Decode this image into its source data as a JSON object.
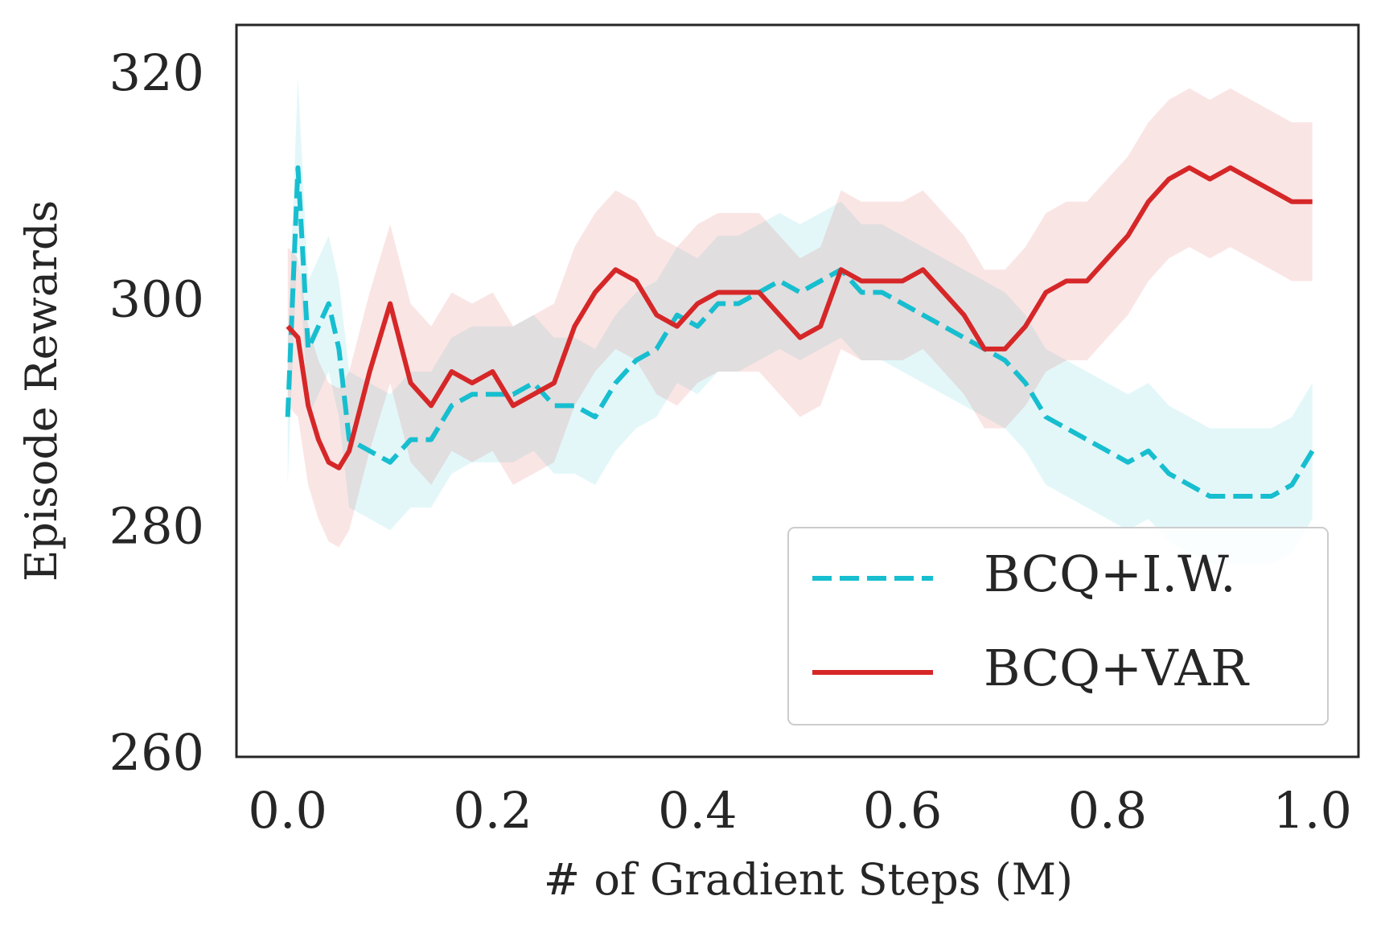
{
  "chart_data": {
    "type": "line",
    "xlabel": "# of Gradient Steps (M)",
    "ylabel": "Episode Rewards",
    "x": [
      0,
      0.01,
      0.02,
      0.03,
      0.04,
      0.05,
      0.06,
      0.08,
      0.1,
      0.12,
      0.14,
      0.16,
      0.18,
      0.2,
      0.22,
      0.24,
      0.26,
      0.28,
      0.3,
      0.32,
      0.34,
      0.36,
      0.38,
      0.4,
      0.42,
      0.44,
      0.46,
      0.48,
      0.5,
      0.52,
      0.54,
      0.56,
      0.58,
      0.6,
      0.62,
      0.64,
      0.66,
      0.68,
      0.7,
      0.72,
      0.74,
      0.76,
      0.78,
      0.8,
      0.82,
      0.84,
      0.86,
      0.88,
      0.9,
      0.92,
      0.94,
      0.96,
      0.98,
      1.0
    ],
    "series": [
      {
        "name": "BCQ+I.W.",
        "color": "#17becf",
        "dash": true,
        "values": [
          290,
          312,
          296,
          298,
          300,
          296,
          288,
          287,
          286,
          288,
          288,
          291,
          292,
          292,
          292,
          293,
          291,
          291,
          290,
          293,
          295,
          296,
          299,
          298,
          300,
          300,
          301,
          302,
          301,
          302,
          303,
          301,
          301,
          300,
          299,
          298,
          297,
          296,
          295,
          293,
          290,
          289,
          288,
          287,
          286,
          287,
          285,
          284,
          283,
          283,
          283,
          283,
          284,
          287
        ],
        "lower": [
          284,
          306,
          290,
          292,
          294,
          290,
          282,
          281,
          280,
          282,
          282,
          285,
          286,
          286,
          286,
          287,
          285,
          285,
          284,
          287,
          289,
          290,
          293,
          292,
          294,
          294,
          295,
          296,
          295,
          296,
          297,
          295,
          295,
          294,
          293,
          292,
          291,
          290,
          289,
          287,
          284,
          283,
          282,
          281,
          280,
          281,
          279,
          278,
          277,
          277,
          277,
          277,
          278,
          281
        ],
        "upper": [
          296,
          320,
          302,
          304,
          306,
          302,
          294,
          293,
          292,
          294,
          294,
          297,
          298,
          298,
          298,
          299,
          297,
          297,
          296,
          299,
          301,
          302,
          305,
          304,
          306,
          306,
          307,
          308,
          307,
          308,
          309,
          307,
          307,
          306,
          305,
          304,
          303,
          302,
          301,
          299,
          296,
          295,
          294,
          293,
          292,
          293,
          291,
          290,
          289,
          289,
          289,
          289,
          290,
          293
        ]
      },
      {
        "name": "BCQ+VAR",
        "color": "#d62728",
        "dash": false,
        "values": [
          298,
          297,
          291,
          288,
          286,
          285.5,
          287,
          294,
          300,
          293,
          291,
          294,
          293,
          294,
          291,
          292,
          293,
          298,
          301,
          303,
          302,
          299,
          298,
          300,
          301,
          301,
          301,
          299,
          297,
          298,
          303,
          302,
          302,
          302,
          303,
          301,
          299,
          296,
          296,
          298,
          301,
          302,
          302,
          304,
          306,
          309,
          311,
          312,
          311,
          312,
          311,
          310,
          309,
          309
        ],
        "lower": [
          291,
          290,
          284,
          281,
          279,
          278.5,
          280,
          287,
          293,
          286,
          284,
          287,
          286,
          287,
          284,
          285,
          286,
          291,
          294,
          296,
          295,
          292,
          291,
          293,
          294,
          294,
          294,
          292,
          290,
          291,
          296,
          295,
          295,
          295,
          296,
          294,
          292,
          289,
          289,
          291,
          294,
          295,
          295,
          297,
          299,
          302,
          304,
          305,
          304,
          305,
          304,
          303,
          302,
          302
        ],
        "upper": [
          305,
          304,
          298,
          295,
          293,
          292.5,
          294,
          301,
          307,
          300,
          298,
          301,
          300,
          301,
          298,
          299,
          300,
          305,
          308,
          310,
          309,
          306,
          305,
          307,
          308,
          308,
          308,
          306,
          304,
          305,
          310,
          309,
          309,
          309,
          310,
          308,
          306,
          303,
          303,
          305,
          308,
          309,
          309,
          311,
          313,
          316,
          318,
          319,
          318,
          319,
          318,
          317,
          316,
          316
        ]
      }
    ],
    "xlim": [
      -0.05,
      1.045
    ],
    "ylim": [
      260,
      324.6
    ],
    "xticks": [
      {
        "value": 0,
        "label": "0.0"
      },
      0.2,
      0.4,
      0.6,
      0.8,
      {
        "value": 1,
        "label": "1.0"
      }
    ],
    "yticks": [
      260,
      280,
      300,
      320
    ],
    "legend": "lower right",
    "grid": false
  }
}
